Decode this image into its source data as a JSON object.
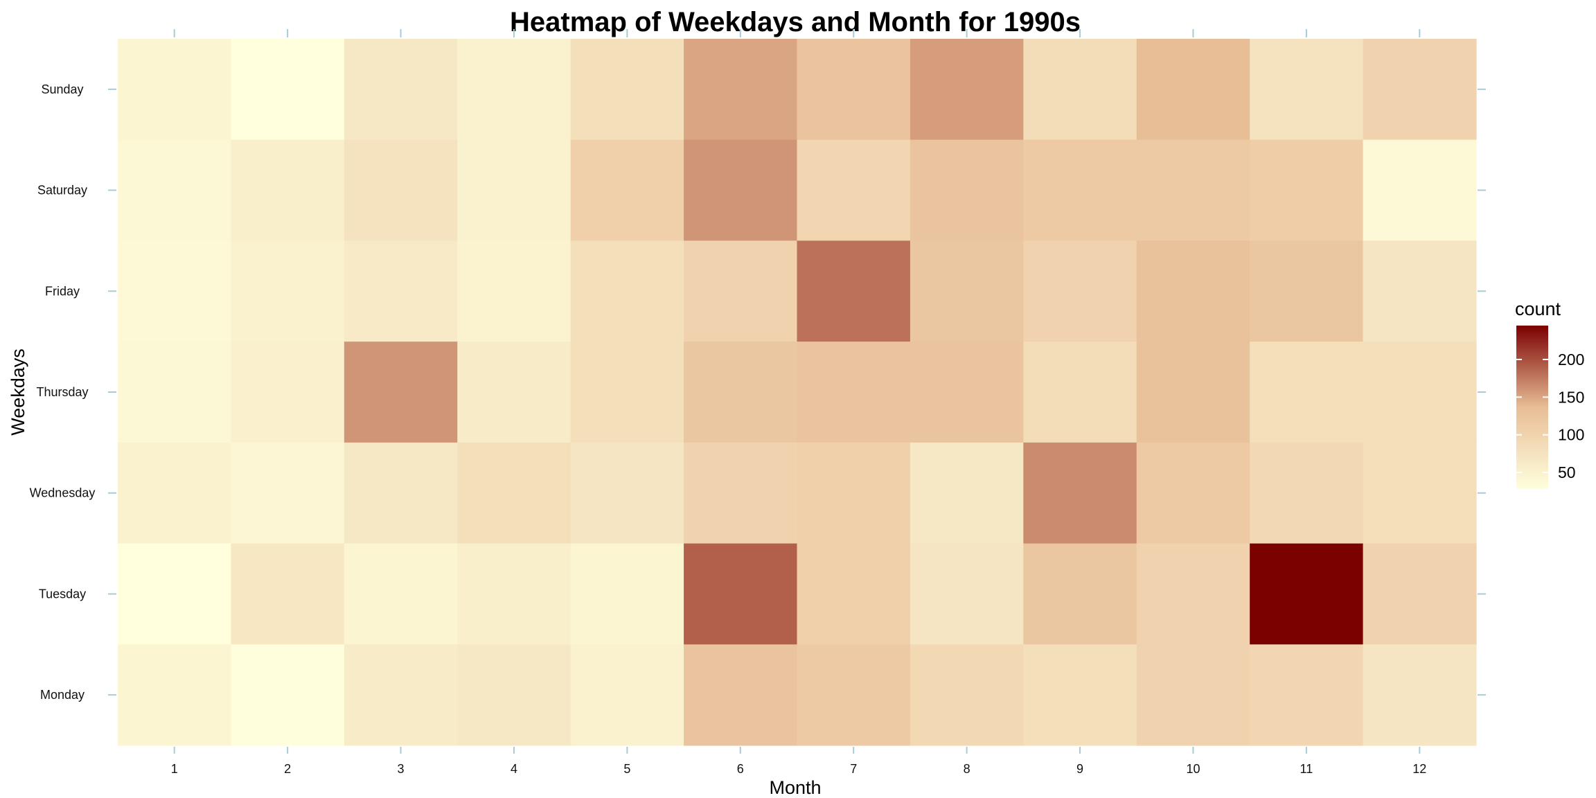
{
  "chart_data": {
    "type": "heatmap",
    "title": "Heatmap of Weekdays and Month for 1990s",
    "xlabel": "Month",
    "ylabel": "Weekdays",
    "x": [
      "1",
      "2",
      "3",
      "4",
      "5",
      "6",
      "7",
      "8",
      "9",
      "10",
      "11",
      "12"
    ],
    "y": [
      "Sunday",
      "Saturday",
      "Friday",
      "Thursday",
      "Wednesday",
      "Tuesday",
      "Monday"
    ],
    "values": [
      [
        45,
        28,
        65,
        50,
        80,
        150,
        125,
        155,
        85,
        135,
        75,
        100
      ],
      [
        40,
        55,
        75,
        50,
        105,
        160,
        95,
        125,
        115,
        115,
        110,
        38
      ],
      [
        38,
        50,
        62,
        48,
        80,
        100,
        180,
        120,
        100,
        130,
        120,
        70
      ],
      [
        40,
        52,
        160,
        60,
        80,
        120,
        125,
        125,
        85,
        130,
        80,
        80
      ],
      [
        50,
        42,
        65,
        80,
        70,
        100,
        105,
        65,
        165,
        115,
        90,
        80
      ],
      [
        28,
        68,
        45,
        55,
        45,
        190,
        105,
        70,
        120,
        100,
        245,
        100
      ],
      [
        45,
        30,
        60,
        65,
        50,
        125,
        115,
        90,
        80,
        100,
        95,
        70
      ]
    ],
    "color_scale": {
      "low": "#ffffdd",
      "mid": "#e8bd96",
      "high": "#7b0000"
    },
    "legend": {
      "title": "count",
      "ticks": [
        50,
        100,
        150,
        200
      ],
      "range": [
        28,
        245
      ],
      "position": "right"
    },
    "grid": false
  }
}
